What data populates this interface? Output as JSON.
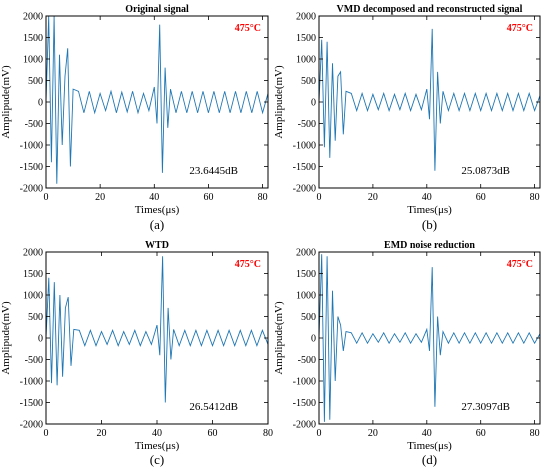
{
  "figure": {
    "panels": [
      {
        "id": "a",
        "title": "Original signal",
        "caption": "(a)",
        "temperature_label": "475°C",
        "snr_label": "23.6445dB",
        "chart_data": {
          "type": "line",
          "title": "Original signal",
          "xlabel": "Times(μs)",
          "ylabel": "Amplipude(mV)",
          "xlim": [
            0,
            82
          ],
          "ylim": [
            -2000,
            2000
          ],
          "xticks": [
            "0",
            "20",
            "40",
            "60",
            "80"
          ],
          "yticks": [
            "2000",
            "1500",
            "1000",
            "500",
            "0",
            "-500",
            "-1000",
            "-1500",
            "-2000"
          ],
          "color": "#1f77b4",
          "series": [
            {
              "x": [
                0,
                1,
                2,
                3,
                4,
                5,
                6,
                7,
                8,
                9,
                10,
                12,
                14,
                16,
                18,
                20,
                22,
                24,
                26,
                28,
                30,
                32,
                34,
                36,
                38,
                40,
                41,
                42,
                43,
                44,
                45,
                46,
                48,
                50,
                52,
                54,
                56,
                58,
                60,
                62,
                64,
                66,
                68,
                70,
                72,
                74,
                76,
                78,
                80,
                82
              ],
              "values": [
                0,
                2000,
                -1400,
                2000,
                -1900,
                1100,
                -1000,
                600,
                1250,
                -1500,
                300,
                250,
                -250,
                250,
                -250,
                200,
                -200,
                250,
                -250,
                230,
                -230,
                250,
                -250,
                200,
                -200,
                350,
                -500,
                1800,
                -1650,
                800,
                -600,
                300,
                -250,
                250,
                -250,
                250,
                -250,
                250,
                -250,
                250,
                -250,
                250,
                -250,
                250,
                -250,
                250,
                -250,
                250,
                -250,
                200
              ]
            }
          ]
        }
      },
      {
        "id": "b",
        "title": "VMD decomposed and reconstructed signal",
        "caption": "(b)",
        "temperature_label": "475°C",
        "snr_label": "25.0873dB",
        "chart_data": {
          "type": "line",
          "title": "VMD decomposed and reconstructed signal",
          "xlabel": "Times(μs)",
          "ylabel": "Amplipude(mV)",
          "xlim": [
            0,
            82
          ],
          "ylim": [
            -2000,
            2000
          ],
          "xticks": [
            "0",
            "20",
            "40",
            "60",
            "80"
          ],
          "yticks": [
            "2000",
            "1500",
            "1000",
            "500",
            "0",
            "-500",
            "-1000",
            "-1500",
            "-2000"
          ],
          "color": "#1f77b4",
          "series": [
            {
              "x": [
                0,
                1,
                2,
                3,
                4,
                5,
                6,
                7,
                8,
                9,
                10,
                12,
                14,
                16,
                18,
                20,
                22,
                24,
                26,
                28,
                30,
                32,
                34,
                36,
                38,
                40,
                41,
                42,
                43,
                44,
                45,
                46,
                48,
                50,
                52,
                54,
                56,
                58,
                60,
                62,
                64,
                66,
                68,
                70,
                72,
                74,
                76,
                78,
                80,
                82
              ],
              "values": [
                0,
                1450,
                -1050,
                1400,
                -1300,
                900,
                -900,
                600,
                700,
                -750,
                250,
                200,
                -200,
                200,
                -200,
                180,
                -180,
                200,
                -200,
                180,
                -180,
                200,
                -200,
                180,
                -180,
                300,
                -400,
                1700,
                -1600,
                700,
                -500,
                250,
                -200,
                200,
                -200,
                200,
                -200,
                200,
                -200,
                200,
                -200,
                200,
                -200,
                200,
                -200,
                200,
                -200,
                200,
                -200,
                150
              ]
            }
          ]
        }
      },
      {
        "id": "c",
        "title": "WTD",
        "caption": "(c)",
        "temperature_label": "475°C",
        "snr_label": "26.5412dB",
        "chart_data": {
          "type": "line",
          "title": "WTD",
          "xlabel": "Times(μs)",
          "ylabel": "Amplipude(mV)",
          "xlim": [
            0,
            80
          ],
          "ylim": [
            -2000,
            2000
          ],
          "xticks": [
            "0",
            "20",
            "40",
            "60",
            "80"
          ],
          "yticks": [
            "2000",
            "1500",
            "1000",
            "500",
            "0",
            "-500",
            "-1000",
            "-1500",
            "-2000"
          ],
          "color": "#1f77b4",
          "series": [
            {
              "x": [
                0,
                1,
                2,
                3,
                4,
                5,
                6,
                7,
                8,
                9,
                10,
                12,
                14,
                16,
                18,
                20,
                22,
                24,
                26,
                28,
                30,
                32,
                34,
                36,
                38,
                40,
                41,
                42,
                43,
                44,
                45,
                46,
                48,
                50,
                52,
                54,
                56,
                58,
                60,
                62,
                64,
                66,
                68,
                70,
                72,
                74,
                76,
                78,
                80
              ],
              "values": [
                0,
                1400,
                -1050,
                1300,
                -1100,
                1000,
                -900,
                700,
                950,
                -650,
                200,
                180,
                -180,
                180,
                -180,
                150,
                -150,
                180,
                -180,
                150,
                -150,
                180,
                -180,
                150,
                -150,
                300,
                -400,
                1900,
                -1500,
                700,
                -500,
                200,
                -180,
                180,
                -180,
                180,
                -180,
                180,
                -180,
                180,
                -180,
                180,
                -180,
                180,
                -180,
                180,
                -180,
                180,
                -150
              ]
            }
          ]
        }
      },
      {
        "id": "d",
        "title": "EMD noise reduction",
        "caption": "(d)",
        "temperature_label": "475°C",
        "snr_label": "27.3097dB",
        "chart_data": {
          "type": "line",
          "title": "EMD noise reduction",
          "xlabel": "Times(μs)",
          "ylabel": "Amplipude(mV)",
          "xlim": [
            0,
            82
          ],
          "ylim": [
            -2000,
            2000
          ],
          "xticks": [
            "0",
            "20",
            "40",
            "60",
            "80"
          ],
          "yticks": [
            "2000",
            "1500",
            "1000",
            "500",
            "0",
            "-500",
            "-1000",
            "-1500",
            "-2000"
          ],
          "color": "#1f77b4",
          "series": [
            {
              "x": [
                0,
                1,
                2,
                3,
                4,
                5,
                6,
                7,
                8,
                9,
                10,
                12,
                14,
                16,
                18,
                20,
                22,
                24,
                26,
                28,
                30,
                32,
                34,
                36,
                38,
                40,
                41,
                42,
                43,
                44,
                45,
                46,
                48,
                50,
                52,
                54,
                56,
                58,
                60,
                62,
                64,
                66,
                68,
                70,
                72,
                74,
                76,
                78,
                80,
                82
              ],
              "values": [
                0,
                1950,
                -1950,
                1900,
                -1900,
                1100,
                -1000,
                500,
                300,
                -300,
                150,
                120,
                -120,
                120,
                -120,
                100,
                -100,
                120,
                -120,
                100,
                -100,
                120,
                -120,
                100,
                -100,
                200,
                -300,
                1650,
                -1600,
                500,
                -400,
                150,
                -120,
                120,
                -120,
                120,
                -120,
                120,
                -120,
                120,
                -120,
                120,
                -120,
                120,
                -120,
                120,
                -120,
                120,
                -120,
                100
              ]
            }
          ]
        }
      }
    ]
  }
}
